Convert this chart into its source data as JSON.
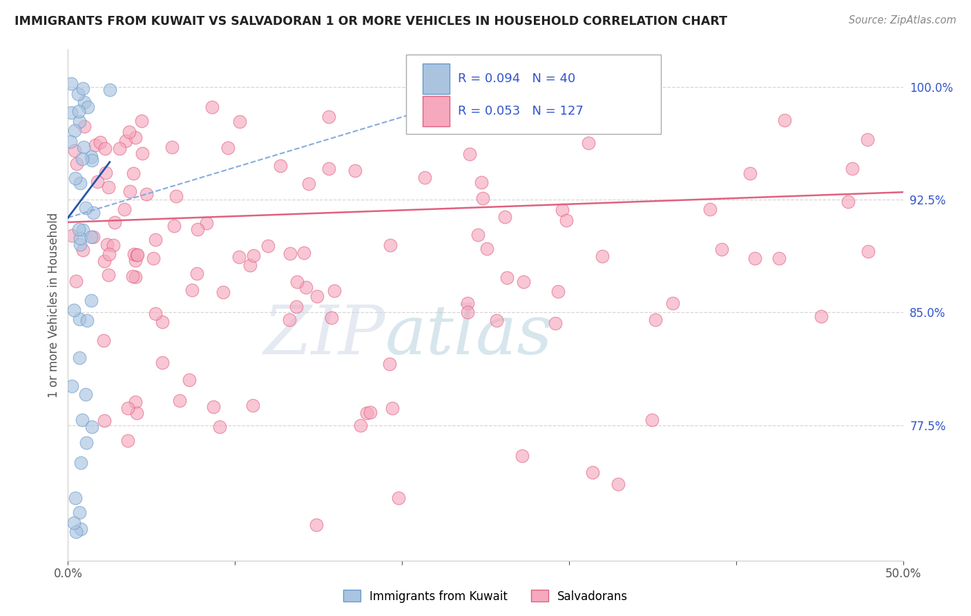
{
  "title": "IMMIGRANTS FROM KUWAIT VS SALVADORAN 1 OR MORE VEHICLES IN HOUSEHOLD CORRELATION CHART",
  "source": "Source: ZipAtlas.com",
  "ylabel": "1 or more Vehicles in Household",
  "xlim": [
    0.0,
    0.5
  ],
  "ylim": [
    0.685,
    1.025
  ],
  "x_ticks": [
    0.0,
    0.1,
    0.2,
    0.3,
    0.4,
    0.5
  ],
  "x_tick_labels": [
    "0.0%",
    "",
    "",
    "",
    "",
    "50.0%"
  ],
  "y_tick_right": [
    0.775,
    0.85,
    0.925,
    1.0
  ],
  "y_tick_right_labels": [
    "77.5%",
    "85.0%",
    "92.5%",
    "100.0%"
  ],
  "kuwait_R": "0.094",
  "kuwait_N": "40",
  "salvador_R": "0.053",
  "salvador_N": "127",
  "watermark_zip": "ZIP",
  "watermark_atlas": "atlas",
  "blue_scatter_color": "#aac4e0",
  "pink_scatter_color": "#f5a8be",
  "blue_edge_color": "#6699cc",
  "pink_edge_color": "#e06080",
  "blue_line_color": "#2255aa",
  "pink_line_color": "#e06080",
  "blue_dashed_color": "#88aadd",
  "grid_color": "#cccccc",
  "background_color": "#ffffff",
  "right_label_color": "#3355cc",
  "title_color": "#222222",
  "source_color": "#888888"
}
